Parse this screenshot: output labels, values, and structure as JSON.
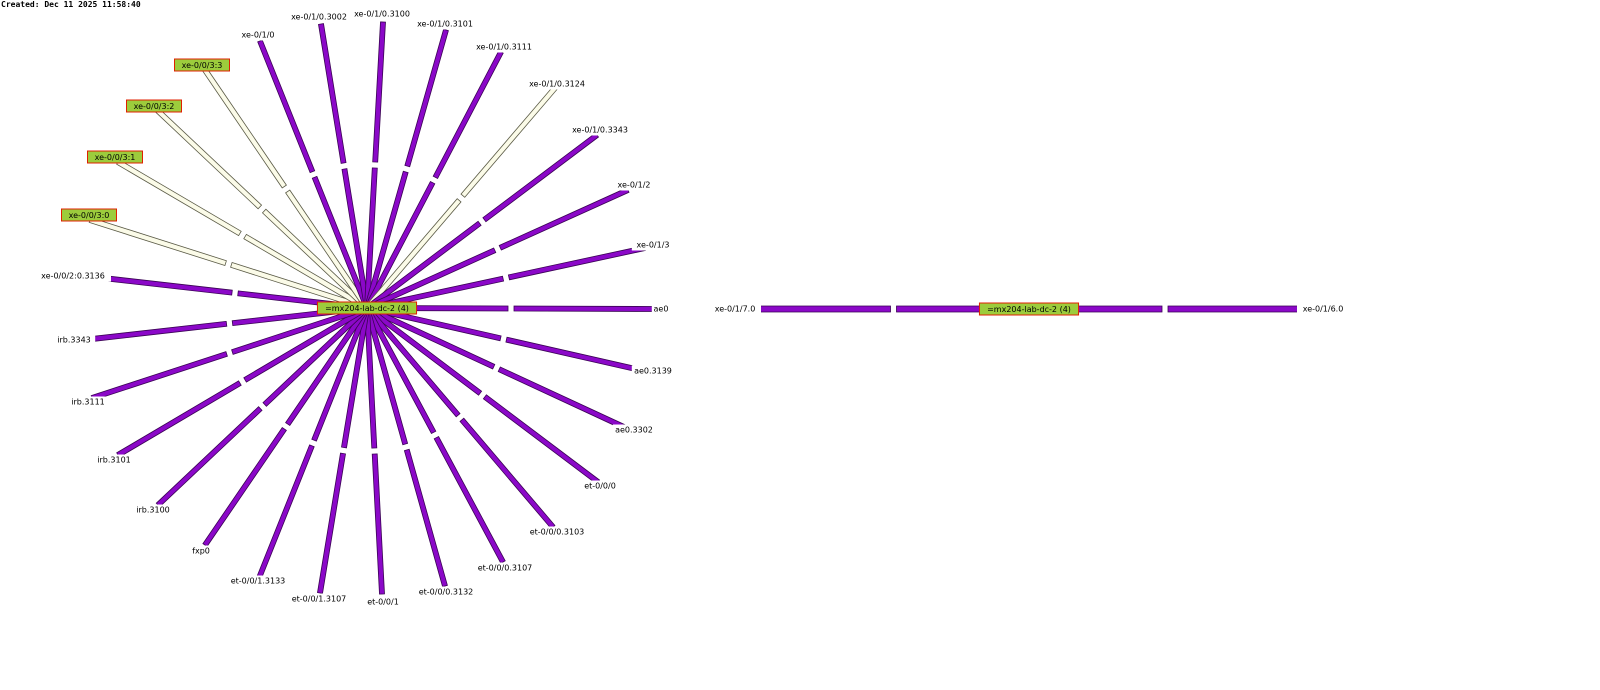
{
  "created_stamp": "Created: Dec 11 2025 11:58:40",
  "colors": {
    "link_fill": "#8b08c8",
    "link_stroke": "#3a0454",
    "alt_link_fill": "#fbfbe8",
    "alt_link_stroke": "#5a5a46",
    "node_fill": "#9ccc3c",
    "node_border": "#e02000",
    "label_bg": "#ffffff"
  },
  "center_node": {
    "label": "=mx204-lab-dc-2 (4)"
  },
  "interfaces": [
    {
      "label": "ae0",
      "style": "purple"
    },
    {
      "label": "ae0.3139",
      "style": "purple"
    },
    {
      "label": "ae0.3302",
      "style": "purple"
    },
    {
      "label": "et-0/0/0",
      "style": "purple"
    },
    {
      "label": "et-0/0/0.3103",
      "style": "purple"
    },
    {
      "label": "et-0/0/0.3107",
      "style": "purple"
    },
    {
      "label": "et-0/0/0.3132",
      "style": "purple"
    },
    {
      "label": "et-0/0/1",
      "style": "purple"
    },
    {
      "label": "et-0/0/1.3107",
      "style": "purple"
    },
    {
      "label": "et-0/0/1.3133",
      "style": "purple"
    },
    {
      "label": "fxp0",
      "style": "purple"
    },
    {
      "label": "irb.3100",
      "style": "purple"
    },
    {
      "label": "irb.3101",
      "style": "purple"
    },
    {
      "label": "irb.3111",
      "style": "purple"
    },
    {
      "label": "irb.3343",
      "style": "purple"
    },
    {
      "label": "xe-0/0/2:0.3136",
      "style": "purple"
    },
    {
      "label": "xe-0/0/3:0",
      "style": "node"
    },
    {
      "label": "xe-0/0/3:1",
      "style": "node"
    },
    {
      "label": "xe-0/0/3:2",
      "style": "node"
    },
    {
      "label": "xe-0/0/3:3",
      "style": "node"
    },
    {
      "label": "xe-0/1/0",
      "style": "purple"
    },
    {
      "label": "xe-0/1/0.3002",
      "style": "purple"
    },
    {
      "label": "xe-0/1/0.3100",
      "style": "purple"
    },
    {
      "label": "xe-0/1/0.3101",
      "style": "purple"
    },
    {
      "label": "xe-0/1/0.3111",
      "style": "purple"
    },
    {
      "label": "xe-0/1/0.3124",
      "style": "alt"
    },
    {
      "label": "xe-0/1/0.3343",
      "style": "purple"
    },
    {
      "label": "xe-0/1/2",
      "style": "purple"
    },
    {
      "label": "xe-0/1/3",
      "style": "purple"
    }
  ],
  "second_graph": {
    "center_label": "=mx204-lab-dc-2 (4)",
    "left_label": "xe-0/1/7.0",
    "right_label": "xe-0/1/6.0"
  }
}
